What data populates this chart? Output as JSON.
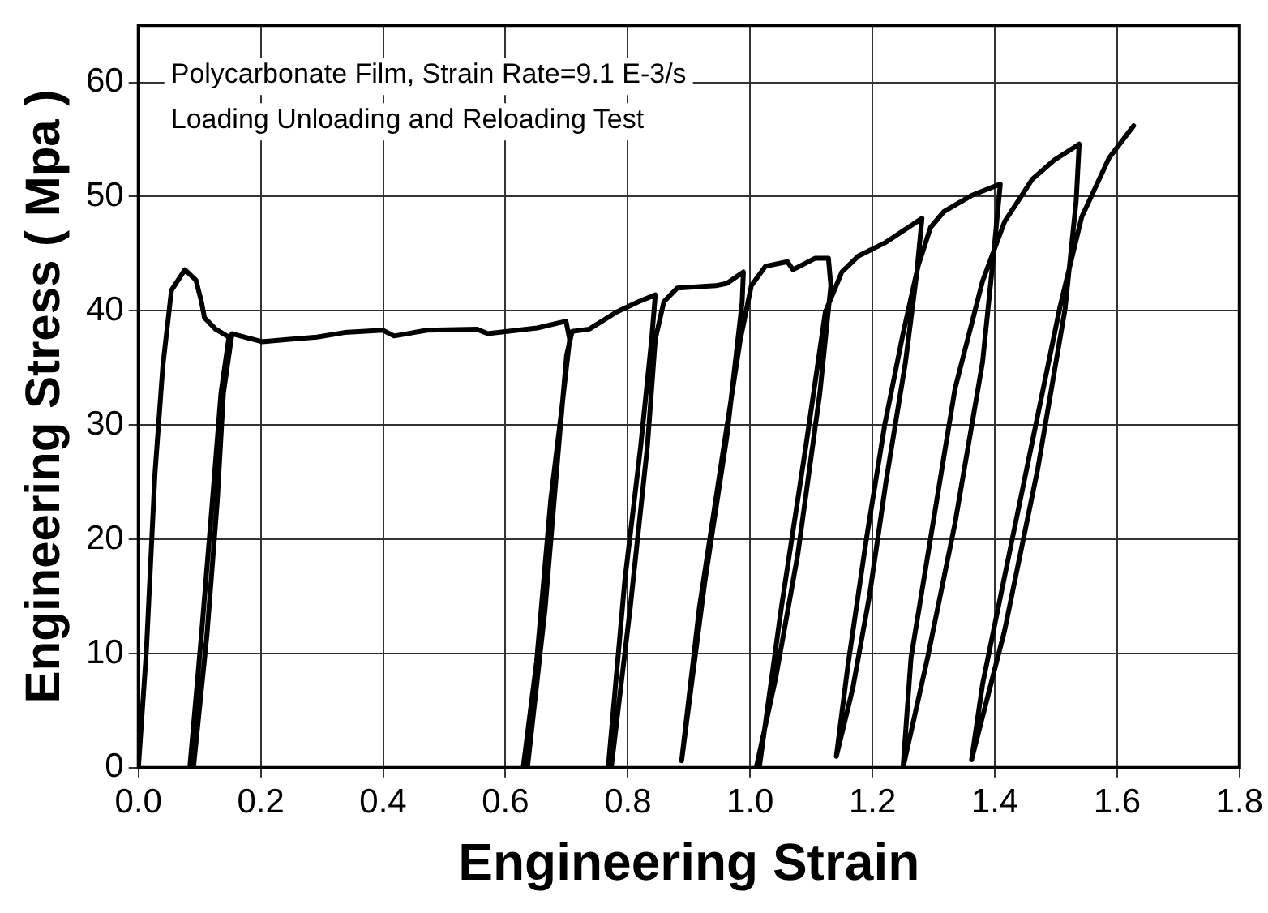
{
  "chart_data": {
    "type": "line",
    "xlabel": "Engineering Strain",
    "ylabel": "Engineering Stress ( Mpa )",
    "annotations": [
      "Polycarbonate Film, Strain Rate=9.1 E-3/s",
      "Loading Unloading and Reloading Test"
    ],
    "series": [
      {
        "color": "#000000",
        "x": [
          0,
          0.013,
          0.027,
          0.04,
          0.054,
          0.076,
          0.094,
          0.103,
          0.108,
          0.126,
          0.148,
          0.135,
          0.121,
          0.103,
          0.084,
          0.09,
          0.112,
          0.129,
          0.139,
          0.153,
          0.202,
          0.247,
          0.292,
          0.337,
          0.4,
          0.418,
          0.472,
          0.553,
          0.571,
          0.652,
          0.692,
          0.699,
          0.705,
          0.692,
          0.674,
          0.651,
          0.629,
          0.636,
          0.665,
          0.687,
          0.7,
          0.709,
          0.737,
          0.782,
          0.818,
          0.845,
          0.839,
          0.821,
          0.795,
          0.768,
          0.773,
          0.804,
          0.832,
          0.845,
          0.859,
          0.881,
          0.944,
          0.962,
          0.989,
          0.987,
          0.962,
          0.926,
          0.888,
          0.917,
          0.953,
          0.984,
          1.002,
          1.025,
          1.061,
          1.07,
          1.106,
          1.128,
          1.132,
          1.114,
          1.078,
          1.042,
          1.01,
          1.015,
          1.051,
          1.091,
          1.123,
          1.15,
          1.177,
          1.222,
          1.281,
          1.272,
          1.254,
          1.222,
          1.195,
          1.168,
          1.141,
          1.16,
          1.19,
          1.22,
          1.25,
          1.275,
          1.295,
          1.317,
          1.362,
          1.409,
          1.398,
          1.38,
          1.335,
          1.29,
          1.25,
          1.263,
          1.299,
          1.335,
          1.38,
          1.416,
          1.461,
          1.497,
          1.538,
          1.533,
          1.515,
          1.47,
          1.416,
          1.362,
          1.38,
          1.425,
          1.47,
          1.506,
          1.542,
          1.587,
          1.627
        ],
        "values": [
          0,
          10.2,
          25.7,
          35.2,
          41.8,
          43.6,
          42.7,
          40.8,
          39.4,
          38.4,
          37.7,
          32.8,
          23.4,
          11.6,
          0,
          0,
          11.6,
          23.4,
          32.8,
          38.0,
          37.3,
          37.5,
          37.7,
          38.1,
          38.3,
          37.8,
          38.3,
          38.4,
          38.0,
          38.5,
          39.0,
          39.1,
          37.5,
          31.4,
          23.4,
          9.3,
          0,
          0,
          14,
          28.1,
          36.1,
          38.2,
          38.4,
          39.9,
          40.8,
          41.4,
          37.5,
          28.1,
          16.3,
          0,
          0,
          14,
          28.1,
          37.5,
          40.8,
          42.0,
          42.2,
          42.4,
          43.4,
          40.8,
          29,
          16.3,
          0.6,
          14,
          26.7,
          37.5,
          42.2,
          43.9,
          44.3,
          43.6,
          44.6,
          44.6,
          42.2,
          32.8,
          18.7,
          7.9,
          0,
          0,
          14,
          28.1,
          39.9,
          43.4,
          44.8,
          46.0,
          48.1,
          43.1,
          35.5,
          25,
          15,
          7,
          1.0,
          9,
          20,
          30,
          38,
          44,
          47.3,
          48.7,
          50.1,
          51.1,
          44.9,
          35.5,
          21.4,
          9.6,
          0,
          9.6,
          21.4,
          33.2,
          42.6,
          47.8,
          51.5,
          53.2,
          54.6,
          49.6,
          40.2,
          26.1,
          12,
          0.7,
          7.3,
          19.1,
          30.8,
          40.2,
          48.2,
          53.4,
          56.2
        ]
      }
    ],
    "xlim": [
      0,
      1.8
    ],
    "xticks": [
      {
        "value": 0,
        "label": "0.0"
      },
      0.2,
      0.4,
      0.6,
      0.8,
      {
        "value": 1,
        "label": "1.0"
      },
      1.2,
      1.4,
      1.6,
      1.8
    ],
    "ylim": [
      0,
      65
    ],
    "yticks": [
      0,
      10,
      20,
      30,
      40,
      50,
      60
    ],
    "grid": true,
    "marker": "none",
    "line_style": "solid"
  }
}
